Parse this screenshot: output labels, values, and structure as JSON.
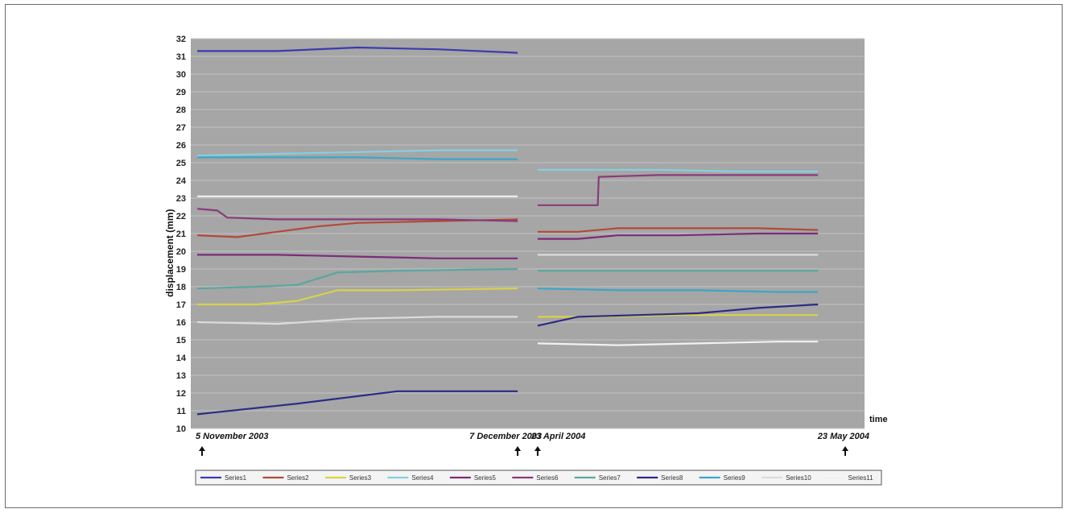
{
  "chart_data": {
    "type": "line",
    "title": "",
    "xlabel": "time",
    "ylabel": "displacement (mm)",
    "ylim": [
      10,
      32
    ],
    "yticks": [
      10,
      11,
      12,
      13,
      14,
      15,
      16,
      17,
      18,
      19,
      20,
      21,
      22,
      23,
      24,
      25,
      26,
      27,
      28,
      29,
      30,
      31,
      32
    ],
    "grid": true,
    "background": "#a6a6a6",
    "legend_position": "bottom",
    "date_markers": [
      {
        "label": "5 November 2003",
        "x": 0
      },
      {
        "label": "7 December 2003",
        "x": 32
      },
      {
        "label": "23 April 2004",
        "x": 34
      },
      {
        "label": "23 May 2004",
        "x": 62
      }
    ],
    "series": [
      {
        "name": "Series1",
        "color": "#3b3bb0",
        "segments": [
          {
            "x": [
              0,
              8,
              16,
              24,
              32
            ],
            "y": [
              31.3,
              31.3,
              31.5,
              31.4,
              31.2
            ]
          }
        ]
      },
      {
        "name": "Series2",
        "color": "#b24a3a",
        "segments": [
          {
            "x": [
              0,
              4,
              8,
              12,
              16,
              24,
              32
            ],
            "y": [
              20.9,
              20.8,
              21.1,
              21.4,
              21.6,
              21.7,
              21.8
            ]
          },
          {
            "x": [
              34,
              38,
              42,
              48,
              56,
              62
            ],
            "y": [
              21.1,
              21.1,
              21.3,
              21.3,
              21.3,
              21.2
            ]
          }
        ]
      },
      {
        "name": "Series3",
        "color": "#d9d24a",
        "segments": [
          {
            "x": [
              0,
              6,
              10,
              14,
              20,
              32
            ],
            "y": [
              17.0,
              17.0,
              17.2,
              17.8,
              17.8,
              17.9
            ]
          },
          {
            "x": [
              34,
              40,
              48,
              56,
              62
            ],
            "y": [
              16.3,
              16.3,
              16.4,
              16.4,
              16.4
            ]
          }
        ]
      },
      {
        "name": "Series4",
        "color": "#86cfe0",
        "segments": [
          {
            "x": [
              0,
              8,
              16,
              24,
              32
            ],
            "y": [
              25.4,
              25.5,
              25.6,
              25.7,
              25.7
            ]
          },
          {
            "x": [
              34,
              40,
              46,
              54,
              62
            ],
            "y": [
              24.6,
              24.6,
              24.6,
              24.5,
              24.5
            ]
          }
        ]
      },
      {
        "name": "Series5",
        "color": "#7c2c7a",
        "segments": [
          {
            "x": [
              0,
              8,
              16,
              24,
              32
            ],
            "y": [
              19.8,
              19.8,
              19.7,
              19.6,
              19.6
            ]
          },
          {
            "x": [
              34,
              38,
              42,
              48,
              56,
              62
            ],
            "y": [
              20.7,
              20.7,
              20.9,
              20.9,
              21.0,
              21.0
            ]
          }
        ]
      },
      {
        "name": "Series6",
        "color": "#8a3b7a",
        "segments": [
          {
            "x": [
              0,
              2,
              3,
              8,
              16,
              24,
              32
            ],
            "y": [
              22.4,
              22.3,
              21.9,
              21.8,
              21.8,
              21.8,
              21.7
            ]
          },
          {
            "x": [
              34,
              38,
              40,
              40.1,
              46,
              54,
              62
            ],
            "y": [
              22.6,
              22.6,
              22.6,
              24.2,
              24.3,
              24.3,
              24.3
            ]
          }
        ]
      },
      {
        "name": "Series7",
        "color": "#5aa6a0",
        "segments": [
          {
            "x": [
              0,
              6,
              10,
              14,
              20,
              32
            ],
            "y": [
              17.9,
              18.0,
              18.1,
              18.8,
              18.9,
              19.0
            ]
          },
          {
            "x": [
              34,
              40,
              48,
              56,
              62
            ],
            "y": [
              18.9,
              18.9,
              18.9,
              18.9,
              18.9
            ]
          }
        ]
      },
      {
        "name": "Series8",
        "color": "#2b2b86",
        "segments": [
          {
            "x": [
              0,
              10,
              20,
              32
            ],
            "y": [
              10.8,
              11.4,
              12.1,
              12.1
            ]
          },
          {
            "x": [
              34,
              38,
              44,
              50,
              56,
              62
            ],
            "y": [
              15.8,
              16.3,
              16.4,
              16.5,
              16.8,
              17.0
            ]
          }
        ]
      },
      {
        "name": "Series9",
        "color": "#3da6c6",
        "segments": [
          {
            "x": [
              0,
              8,
              16,
              24,
              32
            ],
            "y": [
              25.3,
              25.3,
              25.3,
              25.2,
              25.2
            ]
          },
          {
            "x": [
              34,
              42,
              50,
              58,
              62
            ],
            "y": [
              17.9,
              17.8,
              17.8,
              17.7,
              17.7
            ]
          }
        ]
      },
      {
        "name": "Series10",
        "color": "#dcdcdc",
        "segments": [
          {
            "x": [
              0,
              8,
              16,
              24,
              32
            ],
            "y": [
              16.0,
              15.9,
              16.2,
              16.3,
              16.3
            ]
          },
          {
            "x": [
              34,
              42,
              50,
              58,
              62
            ],
            "y": [
              19.8,
              19.8,
              19.8,
              19.8,
              19.8
            ]
          }
        ]
      },
      {
        "name": "Series11",
        "color": "#eef2f2",
        "segments": [
          {
            "x": [
              0,
              8,
              16,
              24,
              32
            ],
            "y": [
              23.1,
              23.1,
              23.1,
              23.1,
              23.1
            ]
          },
          {
            "x": [
              34,
              42,
              50,
              58,
              62
            ],
            "y": [
              14.8,
              14.7,
              14.8,
              14.9,
              14.9
            ]
          }
        ]
      }
    ]
  }
}
